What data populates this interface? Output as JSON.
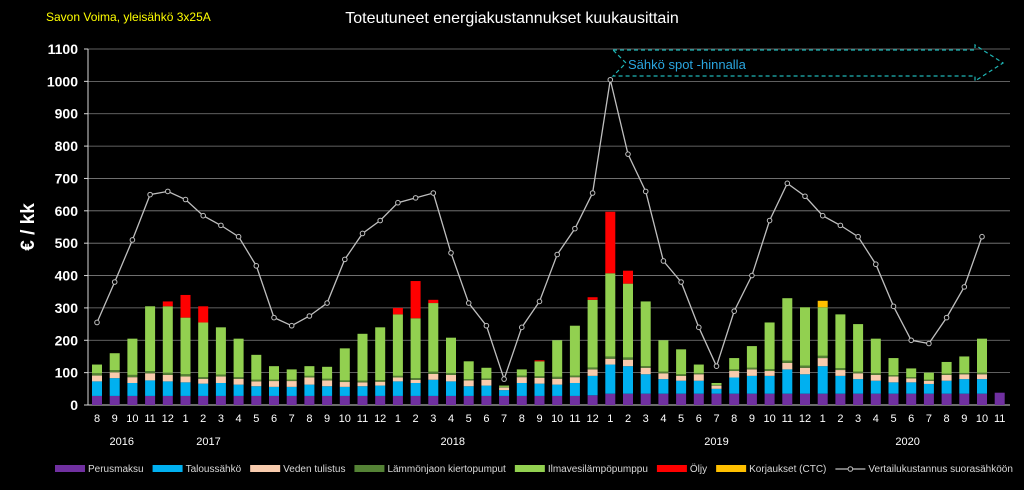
{
  "header": {
    "subtitle": "Savon Voima, yleisähkö 3x25A"
  },
  "chart_data": {
    "type": "bar",
    "stacked": true,
    "title": "Toteutuneet energiakustannukset kuukausittain",
    "ylabel": "€ / kk",
    "xlabel": "",
    "ylim": [
      0,
      1100
    ],
    "yticks": [
      0,
      100,
      200,
      300,
      400,
      500,
      600,
      700,
      800,
      900,
      1000,
      1100
    ],
    "grid": true,
    "legend": "bottom",
    "annotation": "Sähkö spot -hinnalla",
    "years": [
      "2016",
      "2017",
      "2018",
      "2019",
      "2020"
    ],
    "categories": [
      "8",
      "9",
      "10",
      "11",
      "12",
      "1",
      "2",
      "3",
      "4",
      "5",
      "6",
      "7",
      "8",
      "9",
      "10",
      "11",
      "12",
      "1",
      "2",
      "3",
      "4",
      "5",
      "6",
      "7",
      "8",
      "9",
      "10",
      "11",
      "12",
      "1",
      "2",
      "3",
      "4",
      "5",
      "6",
      "7",
      "8",
      "9",
      "10",
      "11",
      "12",
      "1",
      "2",
      "3",
      "4",
      "5",
      "6",
      "7",
      "8",
      "9",
      "10",
      "11"
    ],
    "series": [
      {
        "name": "Perusmaksu",
        "color": "#7030a0",
        "values": [
          28,
          28,
          28,
          28,
          28,
          28,
          28,
          28,
          28,
          28,
          28,
          28,
          28,
          28,
          28,
          28,
          28,
          28,
          28,
          28,
          28,
          28,
          28,
          28,
          28,
          28,
          28,
          28,
          30,
          35,
          35,
          35,
          35,
          35,
          35,
          35,
          35,
          35,
          35,
          35,
          35,
          35,
          35,
          35,
          35,
          35,
          35,
          35,
          35,
          35,
          35,
          38
        ]
      },
      {
        "name": "Taloussähkö",
        "color": "#00b0f0",
        "values": [
          45,
          55,
          40,
          48,
          45,
          42,
          38,
          40,
          35,
          30,
          28,
          28,
          35,
          30,
          28,
          30,
          32,
          45,
          40,
          50,
          45,
          30,
          32,
          18,
          40,
          38,
          35,
          40,
          60,
          90,
          85,
          60,
          45,
          40,
          40,
          15,
          50,
          55,
          55,
          75,
          60,
          85,
          55,
          45,
          40,
          35,
          35,
          30,
          40,
          45,
          45,
          0
        ]
      },
      {
        "name": "Veden tulistus",
        "color": "#f8cbad",
        "values": [
          18,
          18,
          18,
          22,
          20,
          18,
          15,
          20,
          18,
          15,
          18,
          18,
          22,
          18,
          15,
          12,
          12,
          12,
          10,
          18,
          20,
          18,
          18,
          8,
          18,
          18,
          18,
          18,
          20,
          18,
          20,
          20,
          18,
          15,
          20,
          10,
          20,
          20,
          15,
          20,
          20,
          25,
          18,
          18,
          18,
          18,
          12,
          10,
          18,
          15,
          15,
          0
        ]
      },
      {
        "name": "Lämmönjaon kiertopumput",
        "color": "#548235",
        "values": [
          7,
          7,
          7,
          7,
          7,
          7,
          5,
          6,
          5,
          5,
          4,
          4,
          5,
          5,
          5,
          5,
          5,
          5,
          5,
          7,
          6,
          4,
          4,
          2,
          5,
          5,
          6,
          5,
          6,
          7,
          7,
          5,
          5,
          5,
          4,
          2,
          5,
          5,
          6,
          7,
          7,
          7,
          6,
          5,
          5,
          4,
          4,
          3,
          4,
          4,
          5,
          0
        ]
      },
      {
        "name": "Ilmavesilämpöpumppu",
        "color": "#92d050",
        "values": [
          27,
          52,
          112,
          200,
          205,
          175,
          169,
          146,
          119,
          77,
          42,
          32,
          30,
          37,
          99,
          145,
          163,
          190,
          185,
          212,
          109,
          55,
          33,
          4,
          19,
          46,
          113,
          154,
          209,
          257,
          228,
          200,
          97,
          77,
          26,
          6,
          35,
          67,
          144,
          193,
          180,
          150,
          166,
          147,
          107,
          53,
          27,
          22,
          36,
          51,
          105,
          0
        ]
      },
      {
        "name": "Öljy",
        "color": "#ff0000",
        "values": [
          0,
          0,
          0,
          0,
          15,
          70,
          50,
          0,
          0,
          0,
          0,
          0,
          0,
          0,
          0,
          0,
          0,
          20,
          115,
          10,
          0,
          0,
          0,
          0,
          0,
          3,
          0,
          0,
          8,
          190,
          40,
          0,
          0,
          0,
          0,
          0,
          0,
          0,
          0,
          0,
          0,
          0,
          0,
          0,
          0,
          0,
          0,
          0,
          0,
          0,
          0,
          0
        ]
      },
      {
        "name": "Korjaukset (CTC)",
        "color": "#ffc000",
        "values": [
          0,
          0,
          0,
          0,
          0,
          0,
          0,
          0,
          0,
          0,
          0,
          0,
          0,
          0,
          0,
          0,
          0,
          0,
          0,
          0,
          0,
          0,
          0,
          0,
          0,
          0,
          0,
          0,
          0,
          0,
          0,
          0,
          0,
          0,
          0,
          0,
          0,
          0,
          0,
          0,
          0,
          20,
          0,
          0,
          0,
          0,
          0,
          0,
          0,
          0,
          0,
          0
        ]
      }
    ],
    "line": {
      "name": "Vertailukustannus suorasähköön",
      "color": "#bfbfbf",
      "values": [
        255,
        380,
        510,
        650,
        660,
        635,
        585,
        555,
        520,
        430,
        270,
        245,
        275,
        315,
        450,
        530,
        570,
        625,
        640,
        655,
        470,
        315,
        245,
        80,
        240,
        320,
        465,
        545,
        655,
        1005,
        775,
        660,
        445,
        380,
        240,
        120,
        290,
        400,
        570,
        685,
        645,
        585,
        555,
        520,
        435,
        305,
        200,
        190,
        270,
        365,
        520,
        null
      ]
    }
  }
}
